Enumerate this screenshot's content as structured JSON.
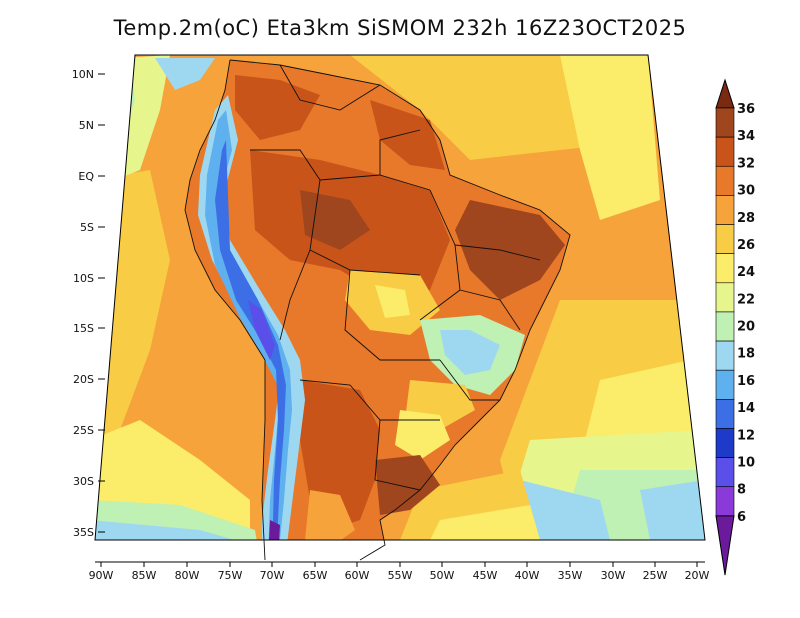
{
  "title": "Temp.2m(oC) Eta3km SiSMOM 232h 16Z23OCT2025",
  "lat_labels": [
    "10N",
    "5N",
    "EQ",
    "5S",
    "10S",
    "15S",
    "20S",
    "25S",
    "30S",
    "35S"
  ],
  "lon_labels": [
    "90W",
    "85W",
    "80W",
    "75W",
    "70W",
    "65W",
    "60W",
    "55W",
    "50W",
    "45W",
    "40W",
    "35W",
    "30W",
    "25W",
    "20W"
  ],
  "colorbar": {
    "labels": [
      "36",
      "34",
      "32",
      "30",
      "28",
      "26",
      "24",
      "22",
      "20",
      "18",
      "16",
      "14",
      "12",
      "10",
      "8",
      "6"
    ],
    "colors": [
      "#7a2a10",
      "#a0461e",
      "#c8541a",
      "#e8782a",
      "#f5a33a",
      "#f8cc44",
      "#fbec6a",
      "#e6f58c",
      "#bff0b4",
      "#9ed8f0",
      "#5fb0ee",
      "#3c6fe6",
      "#1e3ac8",
      "#5a4fe8",
      "#8a3ad8",
      "#6a1a9a"
    ]
  }
}
